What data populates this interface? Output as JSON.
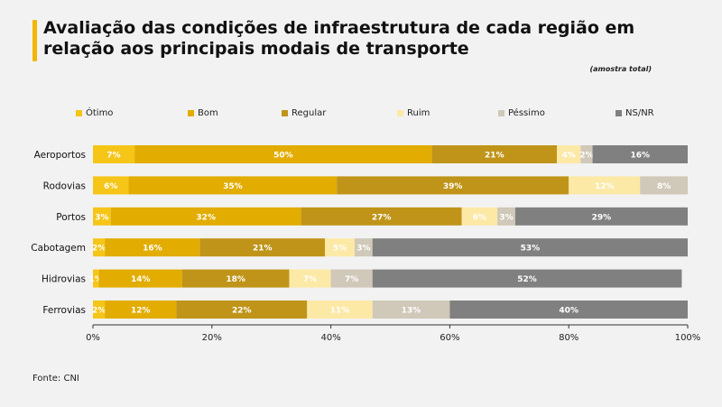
{
  "title": "Avaliação das condições de infraestrutura de cada região em relação aos principais modais de transporte",
  "subtitle": "(amostra total)",
  "source": "Fonte: CNI",
  "chart_data": {
    "type": "bar",
    "orientation": "horizontal",
    "stacked": true,
    "categories": [
      "Aeroportos",
      "Rodovias",
      "Portos",
      "Cabotagem",
      "Hidrovias",
      "Ferrovias"
    ],
    "series": [
      {
        "name": "Ótimo",
        "color": "#f5c518",
        "label_color": "#ffffff",
        "values": [
          7,
          6,
          3,
          2,
          1,
          2
        ]
      },
      {
        "name": "Bom",
        "color": "#e2ac00",
        "label_color": "#ffffff",
        "values": [
          50,
          35,
          32,
          16,
          14,
          12
        ]
      },
      {
        "name": "Regular",
        "color": "#bf9419",
        "label_color": "#ffffff",
        "values": [
          21,
          39,
          27,
          21,
          18,
          22
        ]
      },
      {
        "name": "Ruim",
        "color": "#fde9a6",
        "label_color": "#ffffff",
        "values": [
          4,
          12,
          6,
          5,
          7,
          11
        ]
      },
      {
        "name": "Péssimo",
        "color": "#d0c8b8",
        "label_color": "#ffffff",
        "values": [
          2,
          8,
          3,
          3,
          7,
          13
        ]
      },
      {
        "name": "NS/NR",
        "color": "#808080",
        "label_color": "#ffffff",
        "values": [
          16,
          0,
          29,
          53,
          52,
          40
        ]
      }
    ],
    "value_labels": [
      [
        "7%",
        "50%",
        "21%",
        "4%",
        "2%",
        "16%"
      ],
      [
        "6%",
        "35%",
        "39%",
        "12%",
        "8%",
        ""
      ],
      [
        "3%",
        "32%",
        "27%",
        "6%",
        "3%",
        "29%"
      ],
      [
        "2%",
        "16%",
        "21%",
        "5%",
        "3%",
        "53%"
      ],
      [
        "1%",
        "14%",
        "18%",
        "7%",
        "7%",
        "52%"
      ],
      [
        "2%",
        "12%",
        "22%",
        "11%",
        "13%",
        "40%"
      ]
    ],
    "xlim": [
      0,
      100
    ],
    "xticks": [
      "0%",
      "20%",
      "40%",
      "60%",
      "80%",
      "100%"
    ],
    "legend_position": "top"
  }
}
